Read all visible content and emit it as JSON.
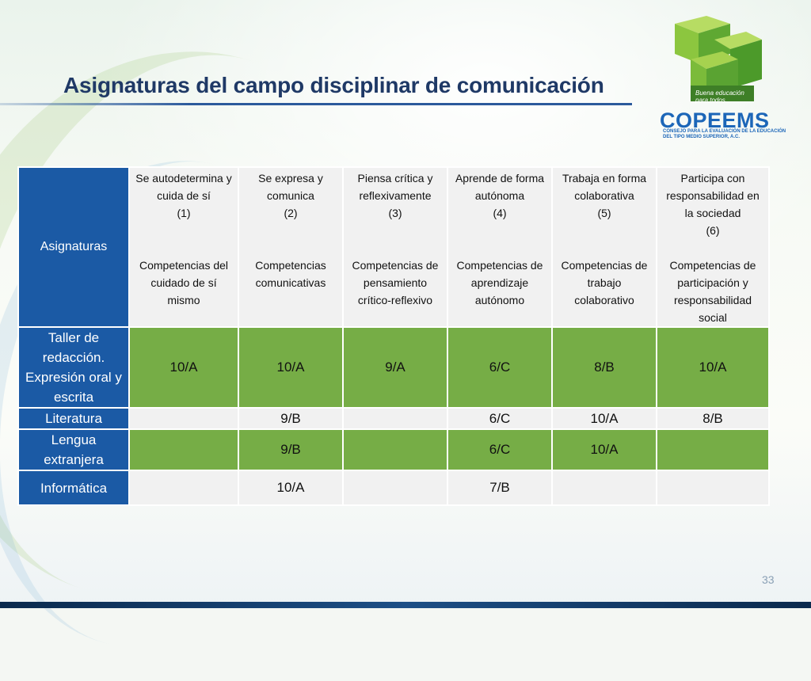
{
  "slide": {
    "title": "Asignaturas del campo disciplinar de comunicación",
    "page_number": "33"
  },
  "logo": {
    "tagline": "Buena educación para todos.",
    "name": "COPEEMS",
    "subtitle": "CONSEJO PARA LA EVALUACIÓN DE LA EDUCACIÓN DEL TIPO MEDIO SUPERIOR, A.C."
  },
  "table": {
    "corner_label": "Asignaturas",
    "columns": [
      {
        "attribute": "Se autodetermina y cuida de sí",
        "number": "(1)",
        "competency": "Competencias del cuidado de sí mismo"
      },
      {
        "attribute": "Se expresa y comunica",
        "number": "(2)",
        "competency": "Competencias comunicativas"
      },
      {
        "attribute": "Piensa crítica y reflexivamente",
        "number": "(3)",
        "competency": "Competencias de pensamiento crítico-reflexivo"
      },
      {
        "attribute": "Aprende de forma autónoma",
        "number": "(4)",
        "competency": "Competencias de aprendizaje autónomo"
      },
      {
        "attribute": "Trabaja en forma colaborativa",
        "number": "(5)",
        "competency": "Competencias de trabajo colaborativo"
      },
      {
        "attribute": "Participa con responsabilidad en la sociedad",
        "number": "(6)",
        "competency": "Competencias de participación y responsabilidad social"
      }
    ],
    "rows": [
      {
        "subject": "Taller de redacción. Expresión oral y escrita",
        "cells": [
          "10/A",
          "10/A",
          "9/A",
          "6/C",
          "8/B",
          "10/A"
        ]
      },
      {
        "subject": "Literatura",
        "cells": [
          "",
          "9/B",
          "",
          "6/C",
          "10/A",
          "8/B"
        ]
      },
      {
        "subject": "Lengua extranjera",
        "cells": [
          "",
          "9/B",
          "",
          "6/C",
          "10/A",
          ""
        ]
      },
      {
        "subject": "Informática",
        "cells": [
          "",
          "10/A",
          "",
          "7/B",
          "",
          ""
        ]
      }
    ]
  },
  "colors": {
    "title": "#1f3966",
    "header_blue": "#1b5aa5",
    "green_fill": "#76ad46",
    "light_fill": "#f1f1f1",
    "logo_blue": "#1c66b8",
    "logo_green": "#8cc63f"
  }
}
